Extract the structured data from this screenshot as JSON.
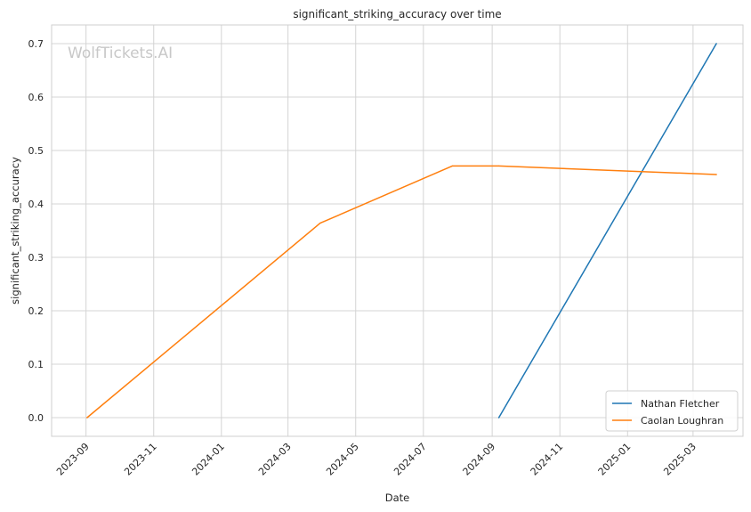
{
  "chart_data": {
    "type": "line",
    "title": "significant_striking_accuracy over time",
    "xlabel": "Date",
    "ylabel": "significant_striking_accuracy",
    "watermark": "WolfTickets.AI",
    "x_ticks": [
      "2023-09",
      "2023-11",
      "2024-01",
      "2024-03",
      "2024-05",
      "2024-07",
      "2024-09",
      "2024-11",
      "2025-01",
      "2025-03"
    ],
    "y_ticks": [
      "0.0",
      "0.1",
      "0.2",
      "0.3",
      "0.4",
      "0.5",
      "0.6",
      "0.7"
    ],
    "xlim": [
      "2023-08-01",
      "2025-04-15"
    ],
    "ylim": [
      -0.035,
      0.735
    ],
    "grid": true,
    "legend_position": "bottom-right",
    "series": [
      {
        "name": "Nathan Fletcher",
        "color": "#1f77b4",
        "x": [
          "2024-09-07",
          "2025-03-22"
        ],
        "y": [
          0.0,
          0.7
        ]
      },
      {
        "name": "Caolan Loughran",
        "color": "#ff7f0e",
        "x": [
          "2023-09-02",
          "2024-03-30",
          "2024-07-27",
          "2024-09-07",
          "2025-03-22"
        ],
        "y": [
          0.0,
          0.364,
          0.471,
          0.471,
          0.455
        ]
      }
    ]
  }
}
